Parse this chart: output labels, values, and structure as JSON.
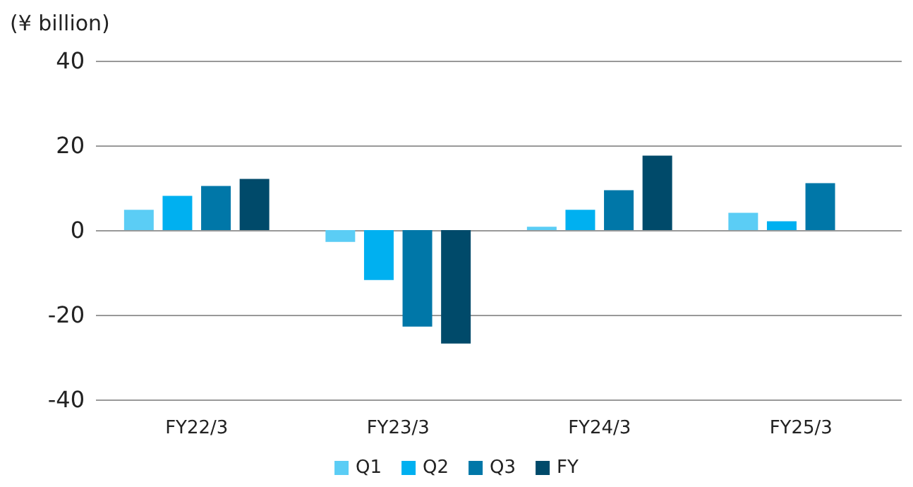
{
  "chart_data": {
    "type": "bar",
    "ylabel": "(¥ billion)",
    "categories": [
      "FY22/3",
      "FY23/3",
      "FY24/3",
      "FY25/3"
    ],
    "series": [
      {
        "name": "Q1",
        "color": "#5bcdf5",
        "values": [
          4.8,
          -2.8,
          0.8,
          4.1
        ]
      },
      {
        "name": "Q2",
        "color": "#00b0f0",
        "values": [
          8.1,
          -11.8,
          4.8,
          2.1
        ]
      },
      {
        "name": "Q3",
        "color": "#0077a8",
        "values": [
          10.4,
          -22.8,
          9.4,
          11.1
        ]
      },
      {
        "name": "FY",
        "color": "#004a6a",
        "values": [
          12.1,
          -26.8,
          17.6,
          null
        ]
      }
    ],
    "ylim": [
      -40,
      40
    ],
    "yticks": [
      -40,
      -20,
      0,
      20,
      40
    ],
    "grid": "y",
    "legend": "bottom"
  }
}
